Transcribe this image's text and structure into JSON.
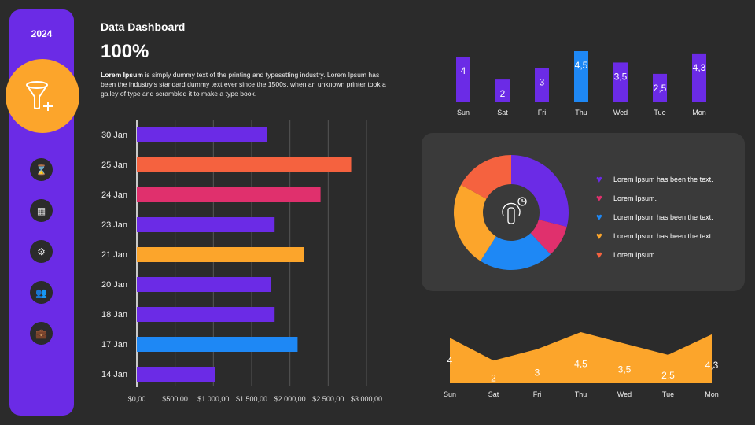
{
  "sidebar": {
    "year": "2024",
    "main_icon": "funnel-plus-icon",
    "icons": [
      "hourglass-icon",
      "calendar-icon",
      "gear-icon",
      "users-icon",
      "briefcase-icon"
    ]
  },
  "header": {
    "title": "Data Dashboard",
    "percent": "100%",
    "desc_bold": "Lorem Ipsum",
    "desc_rest": " is  simply dummy text of the printing and typesetting industry. Lorem Ipsum has been the industry's standard dummy text ever since the 1500s, when an unknown printer took a galley of type and scrambled it to make a type book."
  },
  "chart_data": [
    {
      "type": "bar",
      "orientation": "horizontal",
      "categories": [
        "30 Jan",
        "25 Jan",
        "24 Jan",
        "23 Jan",
        "21 Jan",
        "20 Jan",
        "18 Jan",
        "17 Jan",
        "14 Jan"
      ],
      "values": [
        1700,
        2800,
        2400,
        1800,
        2180,
        1750,
        1800,
        2100,
        1020
      ],
      "colors": [
        "#6b2be6",
        "#f5623f",
        "#e0306d",
        "#6b2be6",
        "#fca52b",
        "#6b2be6",
        "#6b2be6",
        "#1e88f5",
        "#6b2be6"
      ],
      "xlim": [
        0,
        3000
      ],
      "xticks": [
        "$0,00",
        "$500,00",
        "$1 000,00",
        "$1 500,00",
        "$2 000,00",
        "$2 500,00",
        "$3 000,00"
      ],
      "grid": true
    },
    {
      "type": "bar",
      "categories": [
        "Sun",
        "Sat",
        "Fri",
        "Thu",
        "Wed",
        "Tue",
        "Mon"
      ],
      "values": [
        4,
        2,
        3,
        4.5,
        3.5,
        2.5,
        4.3
      ],
      "labels": [
        "4",
        "2",
        "3",
        "4,5",
        "3,5",
        "2,5",
        "4,3"
      ],
      "colors": [
        "#6b2be6",
        "#6b2be6",
        "#6b2be6",
        "#1e88f5",
        "#6b2be6",
        "#6b2be6",
        "#6b2be6"
      ],
      "ylim": [
        0,
        4.5
      ]
    },
    {
      "type": "pie",
      "donut": true,
      "values": [
        29,
        9,
        21,
        24,
        17
      ],
      "colors": [
        "#6b2be6",
        "#e0306d",
        "#1e88f5",
        "#fca52b",
        "#f5623f"
      ],
      "legend": [
        "Lorem Ipsum has been the text.",
        "Lorem Ipsum.",
        "Lorem Ipsum has been the text.",
        "Lorem Ipsum has been the text.",
        "Lorem Ipsum."
      ],
      "legend_placement": "right",
      "center_icon": "touch-clock-icon"
    },
    {
      "type": "area",
      "categories": [
        "Sun",
        "Sat",
        "Fri",
        "Thu",
        "Wed",
        "Tue",
        "Mon"
      ],
      "values": [
        4,
        2,
        3,
        4.5,
        3.5,
        2.5,
        4.3
      ],
      "labels": [
        "4",
        "2",
        "3",
        "4,5",
        "3,5",
        "2,5",
        "4,3"
      ],
      "color": "#fca52b",
      "ylim": [
        0,
        4.5
      ]
    }
  ]
}
